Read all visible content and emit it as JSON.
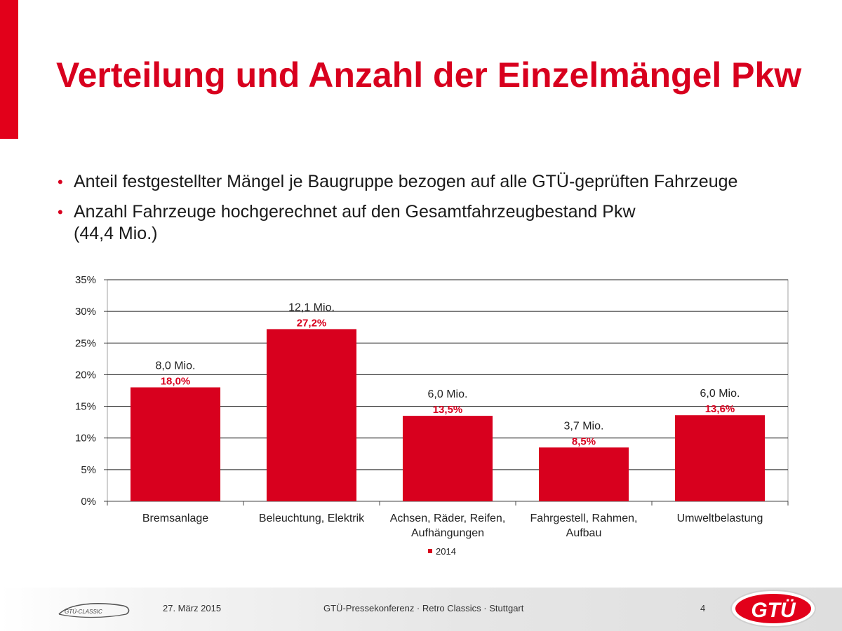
{
  "slide": {
    "title": "Verteilung und Anzahl der Einzelmängel Pkw",
    "accent_color": "#e2001a",
    "bullets": [
      {
        "text": "Anteil festgestellter Mängel je Baugruppe bezogen auf alle GTÜ-geprüften Fahrzeuge"
      },
      {
        "text": "Anzahl Fahrzeuge hochgerechnet auf den Gesamtfahrzeugbestand Pkw",
        "text2": "(44,4 Mio.)"
      }
    ]
  },
  "chart_data": {
    "type": "bar",
    "categories": [
      [
        "Bremsanlage"
      ],
      [
        "Beleuchtung, Elektrik"
      ],
      [
        "Achsen, Räder, Reifen,",
        "Aufhängungen"
      ],
      [
        "Fahrgestell, Rahmen,",
        "Aufbau"
      ],
      [
        "Umweltbelastung"
      ]
    ],
    "series": [
      {
        "name": "2014",
        "values": [
          18.0,
          27.2,
          13.5,
          8.5,
          13.6
        ],
        "color": "#d8001e"
      }
    ],
    "value_labels": [
      "18,0%",
      "27,2%",
      "13,5%",
      "8,5%",
      "13,6%"
    ],
    "count_labels": [
      "8,0 Mio.",
      "12,1 Mio.",
      "6,0 Mio.",
      "3,7 Mio.",
      "6,0 Mio."
    ],
    "y_ticks": [
      "0%",
      "5%",
      "10%",
      "15%",
      "20%",
      "25%",
      "30%",
      "35%"
    ],
    "ylim": [
      0,
      35
    ],
    "ystep": 5,
    "grid": true,
    "legend_position": "bottom-center"
  },
  "footer": {
    "logo_left_text": "GTÜ-CLASSIC",
    "date": "27. März 2015",
    "event": "GTÜ-Pressekonferenz · Retro Classics · Stuttgart",
    "page_number": "4",
    "logo_right_text": "GTÜ"
  }
}
